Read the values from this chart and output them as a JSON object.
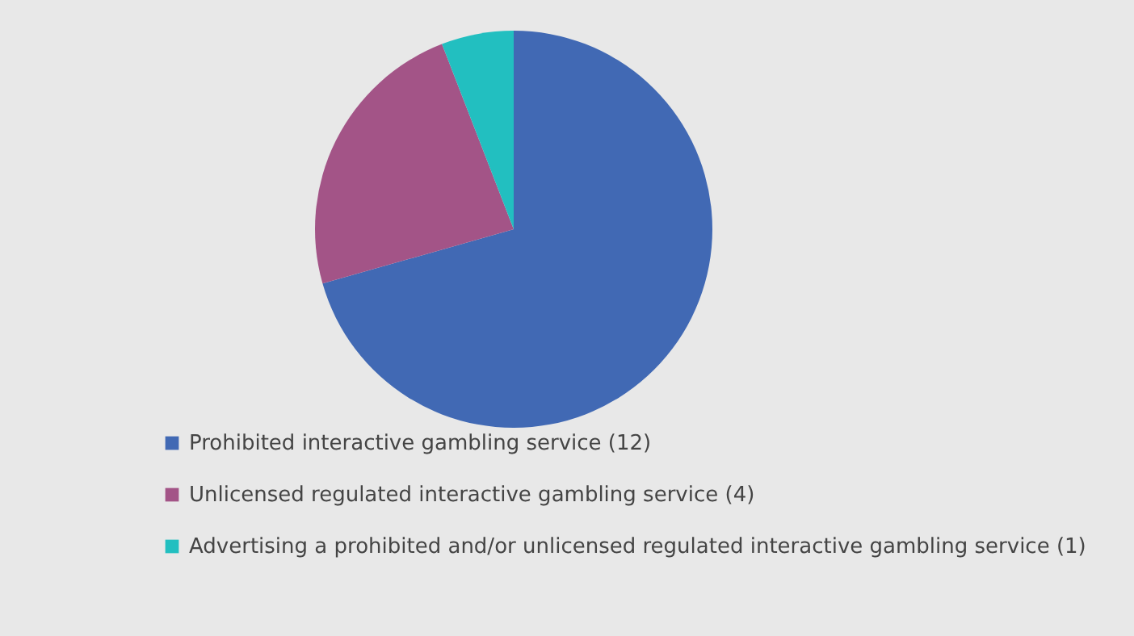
{
  "chart_data": {
    "type": "pie",
    "categories": [
      "Prohibited interactive gambling service (12)",
      "Unlicensed regulated interactive gambling service (4)",
      "Advertising a prohibited and/or unlicensed regulated interactive gambling service (1)"
    ],
    "values": [
      12,
      4,
      1
    ],
    "colors": [
      "#4169b4",
      "#a35487",
      "#22bfc0"
    ],
    "legend": "bottom"
  }
}
